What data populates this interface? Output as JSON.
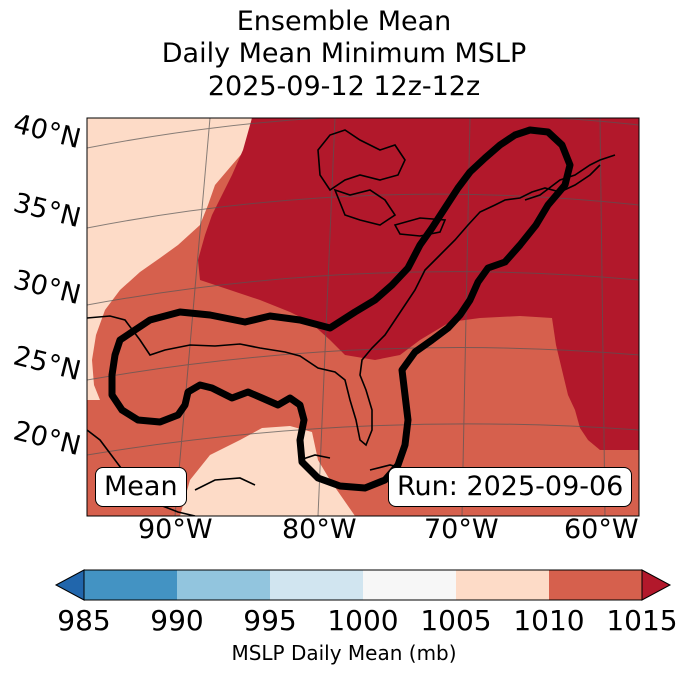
{
  "title": {
    "line1": "Ensemble Mean",
    "line2": "Daily Mean Minimum MSLP",
    "line3": "2025-09-12 12z-12z"
  },
  "map": {
    "lat_labels": [
      "40°N",
      "35°N",
      "30°N",
      "25°N",
      "20°N"
    ],
    "lon_labels": [
      "90°W",
      "80°W",
      "70°W",
      "60°W"
    ],
    "left_badge": "Mean",
    "right_badge": "Run: 2025-09-06",
    "contour_color": "#000000"
  },
  "colorbar": {
    "ticks": [
      "985",
      "990",
      "995",
      "1000",
      "1005",
      "1010",
      "1015"
    ],
    "label": "MSLP Daily Mean (mb)",
    "colors": {
      "below": "#2166ac",
      "985-990": "#4393c3",
      "990-995": "#92c5de",
      "995-1000": "#d1e5f0",
      "1000-1005": "#f7f7f7",
      "1005-1010": "#fddbc7",
      "1010-1015": "#d6604d",
      "above": "#b2182b"
    }
  }
}
